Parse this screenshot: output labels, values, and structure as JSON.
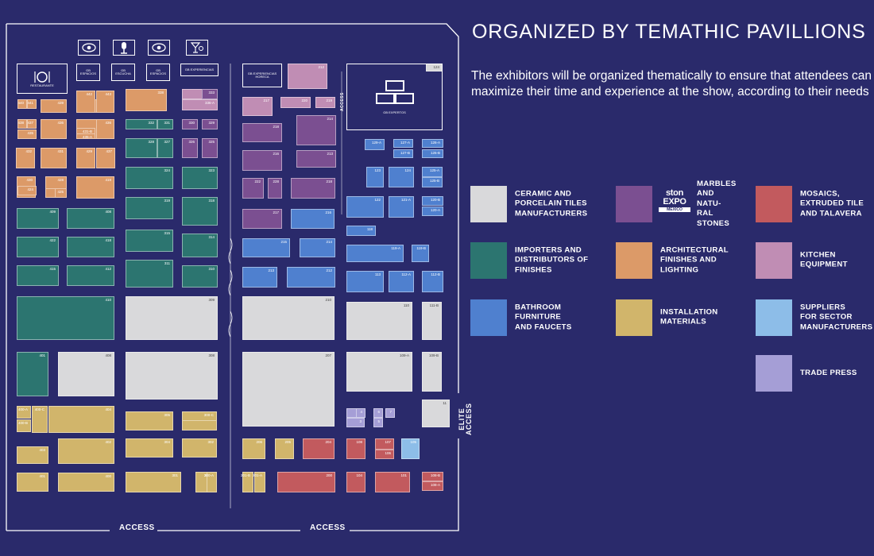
{
  "header": {
    "title": "ORGANIZED BY TEMATHIC PAVILLIONS",
    "description": "The exhibitors will be organized thematically to ensure that attendees can maximize their time and experience at the show, according to their needs"
  },
  "legend": [
    {
      "key": "ceramic",
      "label": "CERAMIC AND\nPORCELAIN TILES\nMANUFACTURERS",
      "color": "#d9d9db"
    },
    {
      "key": "marbles",
      "label": "MARBLES\nAND NATU-\nRAL STONES",
      "color": "#7b4f91",
      "logo": {
        "line1": "ston",
        "line2": "EXPO",
        "line3": "MEXICO"
      }
    },
    {
      "key": "mosaics",
      "label": "MOSAICS,\nEXTRUDED TILE\nAND TALAVERA",
      "color": "#c25a5e"
    },
    {
      "key": "importers",
      "label": "IMPORTERS AND\nDISTRIBUTORS OF\nFINISHES",
      "color": "#2c7570"
    },
    {
      "key": "architectural",
      "label": "ARCHITECTURAL\nFINISHES AND\nLIGHTING",
      "color": "#dc9a68"
    },
    {
      "key": "kitchen",
      "label": "KITCHEN\nEQUIPMENT",
      "color": "#c08db4"
    },
    {
      "key": "bathroom",
      "label": "BATHROOM\nFURNITURE\nAND FAUCETS",
      "color": "#4f80cf"
    },
    {
      "key": "installation",
      "label": "INSTALLATION\nMATERIALS",
      "color": "#d1b56b"
    },
    {
      "key": "suppliers",
      "label": "SUPPLIERS\nFOR SECTOR\nMANUFACTURERS",
      "color": "#8dbde8"
    },
    {
      "key": "press",
      "label": "TRADE PRESS",
      "color": "#a59ed6"
    }
  ],
  "map": {
    "access_labels": [
      "ACCESS",
      "ACCESS",
      "ACCESS",
      "ELITE\nACCESS"
    ],
    "special_areas": [
      {
        "name": "restaurant",
        "label": "RESTAURANTE",
        "icon": "dining-icon"
      },
      {
        "name": "esp1",
        "label": "GB ESPACIOS",
        "icon": "eye-icon"
      },
      {
        "name": "escucha",
        "label": "GB ESCUCHA",
        "icon": "microphone-icon"
      },
      {
        "name": "esp2",
        "label": "GB ESPACIOS",
        "icon": "eye-icon"
      },
      {
        "name": "experiencias",
        "label": "GB EXPERIENCIAS",
        "icon": "cocktail-icon"
      },
      {
        "name": "horeca",
        "label": "GB EXPERIENCIAS HORECA",
        "icon": ""
      },
      {
        "name": "expertos",
        "label": "GB EXPERTOS",
        "icon": "boxes-icon"
      }
    ],
    "booths": [
      {
        "n": "440",
        "c": "architectural"
      },
      {
        "n": "441",
        "c": "architectural"
      },
      {
        "n": "439",
        "c": "architectural"
      },
      {
        "n": "438",
        "c": "architectural"
      },
      {
        "n": "437",
        "c": "architectural"
      },
      {
        "n": "436",
        "c": "architectural"
      },
      {
        "n": "435",
        "c": "architectural"
      },
      {
        "n": "434",
        "c": "architectural"
      },
      {
        "n": "433",
        "c": "architectural"
      },
      {
        "n": "432",
        "c": "architectural"
      },
      {
        "n": "431",
        "c": "architectural"
      },
      {
        "n": "430",
        "c": "architectural"
      },
      {
        "n": "429",
        "c": "architectural"
      },
      {
        "n": "428",
        "c": "architectural"
      },
      {
        "n": "427",
        "c": "architectural"
      },
      {
        "n": "426",
        "c": "architectural"
      },
      {
        "n": "425",
        "c": "architectural"
      },
      {
        "n": "424",
        "c": "architectural"
      },
      {
        "n": "443",
        "c": "architectural"
      },
      {
        "n": "442",
        "c": "architectural"
      },
      {
        "n": "431-B",
        "c": "architectural"
      },
      {
        "n": "435-A",
        "c": "architectural"
      },
      {
        "n": "437",
        "c": "architectural"
      },
      {
        "n": "436",
        "c": "architectural"
      },
      {
        "n": "419",
        "c": "architectural"
      },
      {
        "n": "338",
        "c": "architectural"
      },
      {
        "n": "336-B",
        "c": "kitchen"
      },
      {
        "n": "336-A",
        "c": "kitchen"
      },
      {
        "n": "333",
        "c": "marbles"
      },
      {
        "n": "332",
        "c": "importers"
      },
      {
        "n": "331",
        "c": "importers"
      },
      {
        "n": "330",
        "c": "marbles"
      },
      {
        "n": "329",
        "c": "marbles"
      },
      {
        "n": "328",
        "c": "importers"
      },
      {
        "n": "327",
        "c": "importers"
      },
      {
        "n": "326",
        "c": "marbles"
      },
      {
        "n": "325",
        "c": "marbles"
      },
      {
        "n": "324",
        "c": "importers"
      },
      {
        "n": "323",
        "c": "importers"
      },
      {
        "n": "319",
        "c": "importers"
      },
      {
        "n": "318",
        "c": "importers"
      },
      {
        "n": "315",
        "c": "importers"
      },
      {
        "n": "314",
        "c": "importers"
      },
      {
        "n": "311",
        "c": "importers"
      },
      {
        "n": "310",
        "c": "importers"
      },
      {
        "n": "409",
        "c": "importers"
      },
      {
        "n": "408",
        "c": "importers"
      },
      {
        "n": "422",
        "c": "importers"
      },
      {
        "n": "418",
        "c": "importers"
      },
      {
        "n": "415",
        "c": "importers"
      },
      {
        "n": "412",
        "c": "importers"
      },
      {
        "n": "410",
        "c": "importers"
      },
      {
        "n": "401",
        "c": "importers"
      },
      {
        "n": "408",
        "c": "ceramic"
      },
      {
        "n": "308",
        "c": "ceramic"
      },
      {
        "n": "309",
        "c": "ceramic"
      },
      {
        "n": "404",
        "c": "installation"
      },
      {
        "n": "403",
        "c": "installation"
      },
      {
        "n": "402",
        "c": "installation"
      },
      {
        "n": "401",
        "c": "installation"
      },
      {
        "n": "400-A",
        "c": "installation"
      },
      {
        "n": "400-B",
        "c": "installation"
      },
      {
        "n": "400-C",
        "c": "installation"
      },
      {
        "n": "400",
        "c": "installation"
      },
      {
        "n": "305",
        "c": "installation"
      },
      {
        "n": "304",
        "c": "installation"
      },
      {
        "n": "303",
        "c": "installation"
      },
      {
        "n": "302",
        "c": "installation"
      },
      {
        "n": "301",
        "c": "installation"
      },
      {
        "n": "300-C",
        "c": "installation"
      },
      {
        "n": "300-B",
        "c": "installation"
      },
      {
        "n": "300-A",
        "c": "installation"
      },
      {
        "n": "212",
        "c": "kitchen"
      },
      {
        "n": "217",
        "c": "kitchen"
      },
      {
        "n": "220",
        "c": "kitchen"
      },
      {
        "n": "219",
        "c": "kitchen"
      },
      {
        "n": "218",
        "c": "marbles"
      },
      {
        "n": "214",
        "c": "marbles"
      },
      {
        "n": "216",
        "c": "marbles"
      },
      {
        "n": "213",
        "c": "marbles"
      },
      {
        "n": "222",
        "c": "marbles"
      },
      {
        "n": "228",
        "c": "marbles"
      },
      {
        "n": "218",
        "c": "marbles"
      },
      {
        "n": "217",
        "c": "marbles"
      },
      {
        "n": "216",
        "c": "bathroom"
      },
      {
        "n": "215",
        "c": "bathroom"
      },
      {
        "n": "214",
        "c": "bathroom"
      },
      {
        "n": "213",
        "c": "bathroom"
      },
      {
        "n": "212",
        "c": "bathroom"
      },
      {
        "n": "210",
        "c": "ceramic"
      },
      {
        "n": "207",
        "c": "ceramic"
      },
      {
        "n": "206",
        "c": "installation"
      },
      {
        "n": "205",
        "c": "installation"
      },
      {
        "n": "204",
        "c": "mosaics"
      },
      {
        "n": "201-B",
        "c": "installation"
      },
      {
        "n": "201-A",
        "c": "installation"
      },
      {
        "n": "200",
        "c": "mosaics"
      },
      {
        "n": "124",
        "c": "ceramic"
      },
      {
        "n": "129-A",
        "c": "bathroom"
      },
      {
        "n": "127-A",
        "c": "bathroom"
      },
      {
        "n": "127-B",
        "c": "bathroom"
      },
      {
        "n": "126-A",
        "c": "bathroom"
      },
      {
        "n": "126-B",
        "c": "bathroom"
      },
      {
        "n": "123",
        "c": "bathroom"
      },
      {
        "n": "124",
        "c": "bathroom"
      },
      {
        "n": "125-A",
        "c": "bathroom"
      },
      {
        "n": "125-B",
        "c": "bathroom"
      },
      {
        "n": "122",
        "c": "bathroom"
      },
      {
        "n": "121-A",
        "c": "bathroom"
      },
      {
        "n": "120-B",
        "c": "bathroom"
      },
      {
        "n": "120-A",
        "c": "bathroom"
      },
      {
        "n": "118",
        "c": "bathroom"
      },
      {
        "n": "119-A",
        "c": "bathroom"
      },
      {
        "n": "119-B",
        "c": "bathroom"
      },
      {
        "n": "113",
        "c": "bathroom"
      },
      {
        "n": "112-A",
        "c": "bathroom"
      },
      {
        "n": "112-B",
        "c": "bathroom"
      },
      {
        "n": "111-B",
        "c": "ceramic"
      },
      {
        "n": "110",
        "c": "ceramic"
      },
      {
        "n": "109-A",
        "c": "ceramic"
      },
      {
        "n": "109-B",
        "c": "ceramic"
      },
      {
        "n": "11",
        "c": "ceramic"
      },
      {
        "n": "4",
        "c": "press"
      },
      {
        "n": "4",
        "c": "press"
      },
      {
        "n": "6",
        "c": "press"
      },
      {
        "n": "7",
        "c": "press"
      },
      {
        "n": "3",
        "c": "press"
      },
      {
        "n": "5",
        "c": "press"
      },
      {
        "n": "108",
        "c": "mosaics"
      },
      {
        "n": "107",
        "c": "mosaics"
      },
      {
        "n": "106",
        "c": "mosaics"
      },
      {
        "n": "105",
        "c": "suppliers"
      },
      {
        "n": "104",
        "c": "mosaics"
      },
      {
        "n": "101",
        "c": "mosaics"
      },
      {
        "n": "108-B",
        "c": "mosaics"
      },
      {
        "n": "108-A",
        "c": "mosaics"
      }
    ]
  }
}
